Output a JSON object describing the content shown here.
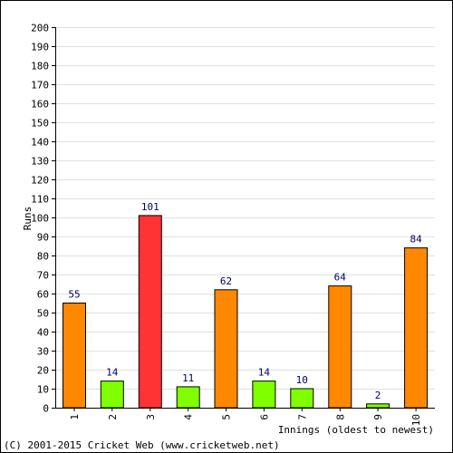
{
  "chart_data": {
    "type": "bar",
    "categories": [
      "1",
      "2",
      "3",
      "4",
      "5",
      "6",
      "7",
      "8",
      "9",
      "10"
    ],
    "values": [
      55,
      14,
      101,
      11,
      62,
      14,
      10,
      64,
      2,
      84
    ],
    "bar_colors": [
      "#ff8800",
      "#80ff00",
      "#ff3333",
      "#80ff00",
      "#ff8800",
      "#80ff00",
      "#80ff00",
      "#ff8800",
      "#80ff00",
      "#ff8800"
    ],
    "title": "",
    "xlabel": "Innings (oldest to newest)",
    "ylabel": "Runs",
    "ylim": [
      0,
      200
    ],
    "ytick_step": 10,
    "grid": true,
    "legend": "none"
  },
  "footer": {
    "copyright": "(C) 2001-2015 Cricket Web (www.cricketweb.net)"
  }
}
